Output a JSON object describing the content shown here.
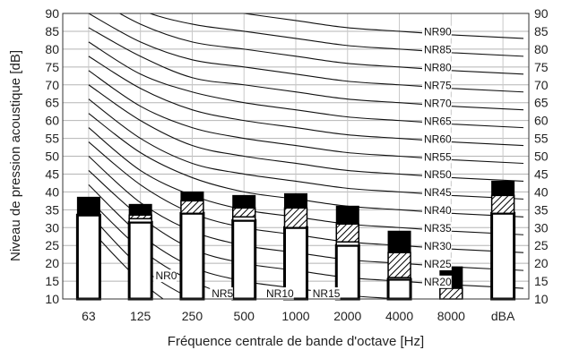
{
  "chart_data": {
    "type": "bar",
    "title": "",
    "xlabel": "Fréquence centrale de bande d'octave [Hz]",
    "ylabel": "Niveau de pression acoustique [dB]",
    "ylim": [
      10,
      90
    ],
    "yticks": [
      10,
      15,
      20,
      25,
      30,
      35,
      40,
      45,
      50,
      55,
      60,
      65,
      70,
      75,
      80,
      85,
      90
    ],
    "categories": [
      "63",
      "125",
      "250",
      "500",
      "1000",
      "2000",
      "4000",
      "8000",
      "dBA"
    ],
    "series": [
      {
        "values": [
          33.5,
          31.5,
          34,
          32,
          30,
          25,
          15.5,
          10,
          34
        ]
      },
      {
        "values": [
          33.5,
          32.5,
          34,
          33,
          30,
          26,
          16,
          10,
          34
        ]
      },
      {
        "values": [
          33.5,
          33.5,
          37.5,
          35.5,
          35.5,
          31,
          23,
          13,
          39
        ]
      },
      {
        "values": [
          38.5,
          36.5,
          40,
          39,
          39.5,
          36,
          29,
          19,
          43
        ]
      }
    ],
    "nr_curves": [
      {
        "label": "NR90",
        "values": [
          103,
          96,
          92,
          90,
          88,
          86,
          85,
          84
        ]
      },
      {
        "label": "NR85",
        "values": [
          99,
          91,
          87,
          85,
          83,
          81,
          80,
          79
        ]
      },
      {
        "label": "NR80",
        "values": [
          95,
          87,
          82,
          80,
          78,
          76,
          75,
          74
        ]
      },
      {
        "label": "NR75",
        "values": [
          90,
          82,
          77,
          75,
          73,
          71,
          70,
          69
        ]
      },
      {
        "label": "NR70",
        "values": [
          86,
          78,
          72,
          70,
          68,
          66,
          65,
          64
        ]
      },
      {
        "label": "NR65",
        "values": [
          82,
          73,
          68,
          65,
          63,
          61,
          60,
          59
        ]
      },
      {
        "label": "NR60",
        "values": [
          78,
          69,
          63,
          60,
          58,
          56,
          55,
          54
        ]
      },
      {
        "label": "NR55",
        "values": [
          74,
          64,
          58,
          55,
          53,
          51,
          50,
          49
        ]
      },
      {
        "label": "NR50",
        "values": [
          70,
          60,
          53,
          50,
          48,
          46,
          45,
          44
        ]
      },
      {
        "label": "NR45",
        "values": [
          66,
          55,
          48,
          45,
          43,
          41,
          40,
          39
        ]
      },
      {
        "label": "NR40",
        "values": [
          62,
          51,
          44,
          40,
          38,
          36,
          35,
          34
        ]
      },
      {
        "label": "NR35",
        "values": [
          58,
          46,
          39,
          35,
          33,
          31,
          30,
          29
        ]
      },
      {
        "label": "NR30",
        "values": [
          54,
          42,
          34,
          30,
          28,
          26,
          25,
          24
        ]
      },
      {
        "label": "NR25",
        "values": [
          50,
          37,
          29,
          25,
          23,
          21,
          20,
          19
        ]
      },
      {
        "label": "NR20",
        "values": [
          46,
          33,
          24,
          20,
          18,
          16,
          15,
          14
        ]
      },
      {
        "label": "NR15",
        "values": [
          42,
          28,
          19,
          15,
          13,
          11,
          10,
          9
        ]
      },
      {
        "label": "NR10",
        "values": [
          38,
          24,
          15,
          10,
          8,
          6,
          5,
          4
        ]
      },
      {
        "label": "NR5",
        "values": [
          34,
          19,
          10,
          5,
          3,
          1,
          0,
          -1
        ]
      },
      {
        "label": "NR0",
        "values": [
          30,
          15,
          5,
          0,
          -2,
          -4,
          -5,
          -6
        ]
      }
    ],
    "grid": true,
    "colors": {
      "bar_fill": "#ffffff",
      "bar_edge": "#000000",
      "top_band": "#000000",
      "hatch": "#000000",
      "curve": "#000000"
    }
  }
}
